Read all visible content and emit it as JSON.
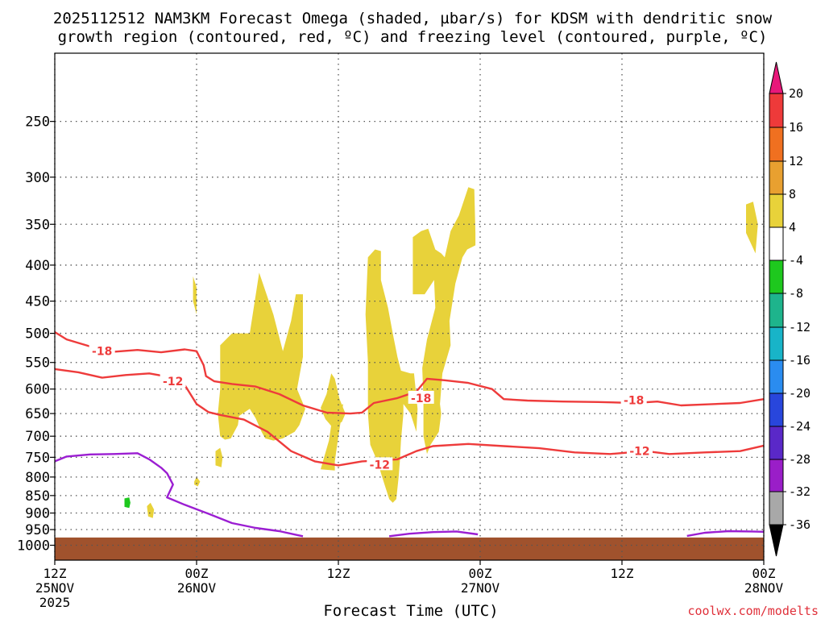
{
  "title": {
    "line1": "2025112512 NAM3KM Forecast Omega (shaded, µbar/s) for KDSM with dendritic snow",
    "line2": "growth region (contoured, red, ºC) and freezing level (contoured, purple, ºC)"
  },
  "credit": "coolwx.com/modelts",
  "chart_data": {
    "type": "time-height cross section (filled contours + line contours)",
    "title": "2025112512 NAM3KM Forecast Omega (shaded, µbar/s) for KDSM with dendritic snow growth region (contoured, red, ºC) and freezing level (contoured, purple, ºC)",
    "xlabel": "Forecast Time (UTC)",
    "ylabel": "",
    "x_unit": "forecast hour from 2025112512",
    "y_unit": "hPa",
    "xlim": [
      0,
      60
    ],
    "ylim": [
      1050,
      200
    ],
    "y_scale": "log",
    "grid": true,
    "x_ticks": [
      {
        "hour": 0,
        "lines": [
          "12Z",
          "25NOV",
          "2025"
        ]
      },
      {
        "hour": 12,
        "lines": [
          "00Z",
          "26NOV"
        ]
      },
      {
        "hour": 24,
        "lines": [
          "12Z"
        ]
      },
      {
        "hour": 36,
        "lines": [
          "00Z",
          "27NOV"
        ]
      },
      {
        "hour": 48,
        "lines": [
          "12Z"
        ]
      },
      {
        "hour": 60,
        "lines": [
          "00Z",
          "28NOV"
        ]
      }
    ],
    "y_ticks": [
      250,
      300,
      350,
      400,
      450,
      500,
      550,
      600,
      650,
      700,
      750,
      800,
      850,
      900,
      950,
      1000
    ],
    "colorbar": {
      "label_unit": "µbar/s",
      "tick_labels": [
        "20",
        "16",
        "12",
        "8",
        "4",
        "-4",
        "-8",
        "-12",
        "-16",
        "-20",
        "-24",
        "-28",
        "-32",
        "-36"
      ],
      "bins": [
        {
          "range": "> 20",
          "color": "#e8187a"
        },
        {
          "range": "16 to 20",
          "color": "#ee3a3a"
        },
        {
          "range": "12 to 16",
          "color": "#f07020"
        },
        {
          "range": "8 to 12",
          "color": "#e8a030"
        },
        {
          "range": "4 to 8",
          "color": "#e8d23a"
        },
        {
          "range": "-4 to 4",
          "color": "#ffffff"
        },
        {
          "range": "-8 to -4",
          "color": "#1ec81e"
        },
        {
          "range": "-12 to -8",
          "color": "#1eb48c"
        },
        {
          "range": "-16 to -12",
          "color": "#18b4c8"
        },
        {
          "range": "-20 to -16",
          "color": "#2a8cf0"
        },
        {
          "range": "-24 to -20",
          "color": "#2846dc"
        },
        {
          "range": "-28 to -24",
          "color": "#5a28c8"
        },
        {
          "range": "-32 to -28",
          "color": "#9a1ec8"
        },
        {
          "range": "-36 to -32",
          "color": "#a8a8a8"
        },
        {
          "range": "< -36",
          "color": "#000000"
        }
      ]
    },
    "terrain": {
      "top_hPa": 975,
      "color": "#a0522d"
    },
    "colors": {
      "dgz": "#ee3b3b",
      "freezing": "#9b1ed2",
      "omega_4_8": "#e8d23a",
      "omega_m8_m4": "#1ec81e"
    },
    "series": [
      {
        "name": "-18",
        "kind": "isotherm",
        "color_key": "dgz",
        "points": [
          [
            0,
            498
          ],
          [
            1,
            510
          ],
          [
            3,
            522
          ],
          [
            5,
            531
          ],
          [
            7,
            528
          ],
          [
            9,
            532
          ],
          [
            11,
            527
          ],
          [
            12,
            530
          ],
          [
            12.6,
            555
          ],
          [
            12.8,
            575
          ],
          [
            13.5,
            585
          ],
          [
            15,
            590
          ],
          [
            17,
            595
          ],
          [
            19,
            610
          ],
          [
            21,
            633
          ],
          [
            23,
            648
          ],
          [
            25,
            650
          ],
          [
            26,
            648
          ],
          [
            27,
            628
          ],
          [
            29,
            618
          ],
          [
            30.6,
            605
          ],
          [
            31.5,
            580
          ],
          [
            33,
            583
          ],
          [
            35,
            588
          ],
          [
            37,
            600
          ],
          [
            38,
            620
          ],
          [
            40,
            623
          ],
          [
            43,
            625
          ],
          [
            46,
            626
          ],
          [
            49,
            628
          ],
          [
            51,
            625
          ],
          [
            53,
            633
          ],
          [
            55,
            631
          ],
          [
            58,
            628
          ],
          [
            60,
            620
          ]
        ],
        "labels": [
          {
            "text": "-18",
            "at": [
              4,
              530
            ]
          },
          {
            "text": "-18",
            "at": [
              31,
              618
            ]
          },
          {
            "text": "-18",
            "at": [
              49,
              622
            ]
          }
        ]
      },
      {
        "name": "-12",
        "kind": "isotherm",
        "color_key": "dgz",
        "points": [
          [
            0,
            562
          ],
          [
            2,
            568
          ],
          [
            4,
            578
          ],
          [
            6,
            573
          ],
          [
            8,
            570
          ],
          [
            10,
            578
          ],
          [
            11,
            592
          ],
          [
            12,
            630
          ],
          [
            13,
            647
          ],
          [
            14,
            653
          ],
          [
            16,
            663
          ],
          [
            18,
            690
          ],
          [
            20,
            735
          ],
          [
            22,
            760
          ],
          [
            24,
            770
          ],
          [
            26,
            760
          ],
          [
            29,
            755
          ],
          [
            30.6,
            735
          ],
          [
            32,
            723
          ],
          [
            35,
            718
          ],
          [
            38,
            723
          ],
          [
            41,
            728
          ],
          [
            44,
            738
          ],
          [
            47,
            742
          ],
          [
            50,
            735
          ],
          [
            52,
            742
          ],
          [
            55,
            738
          ],
          [
            58,
            735
          ],
          [
            60,
            722
          ]
        ],
        "labels": [
          {
            "text": "-12",
            "at": [
              10,
              585
            ]
          },
          {
            "text": "-12",
            "at": [
              27.5,
              768
            ]
          },
          {
            "text": "-12",
            "at": [
              49.5,
              735
            ]
          }
        ]
      },
      {
        "name": "0",
        "kind": "freezing level",
        "color_key": "freezing",
        "points": [
          [
            0,
            760
          ],
          [
            1,
            748
          ],
          [
            3,
            743
          ],
          [
            5,
            742
          ],
          [
            7,
            740
          ],
          [
            8,
            755
          ],
          [
            9,
            776
          ],
          [
            9.5,
            790
          ],
          [
            10,
            820
          ],
          [
            9.5,
            855
          ],
          [
            11,
            876
          ],
          [
            13,
            902
          ],
          [
            15,
            930
          ],
          [
            17,
            945
          ],
          [
            19,
            955
          ],
          [
            20.5,
            967
          ],
          [
            21,
            971
          ]
        ],
        "labels": []
      },
      {
        "name": "0",
        "kind": "freezing level",
        "color_key": "freezing",
        "points": [
          [
            28.3,
            971
          ],
          [
            30,
            963
          ],
          [
            32,
            958
          ],
          [
            34,
            956
          ],
          [
            35.8,
            965
          ]
        ],
        "labels": []
      },
      {
        "name": "0",
        "kind": "freezing level",
        "color_key": "freezing",
        "points": [
          [
            53.5,
            970
          ],
          [
            55,
            960
          ],
          [
            57,
            955
          ],
          [
            59,
            956
          ],
          [
            60,
            957
          ]
        ],
        "labels": []
      }
    ],
    "omega_regions": [
      {
        "category": "4 to 8",
        "color_key": "omega_4_8",
        "points": [
          [
            11.7,
            415
          ],
          [
            12,
            430
          ],
          [
            12,
            470
          ],
          [
            11.7,
            450
          ]
        ]
      },
      {
        "category": "4 to 8",
        "color_key": "omega_4_8",
        "points": [
          [
            14,
            520
          ],
          [
            15,
            500
          ],
          [
            16.5,
            500
          ],
          [
            17.3,
            410
          ],
          [
            18.5,
            470
          ],
          [
            19.3,
            530
          ],
          [
            20,
            480
          ],
          [
            20.4,
            440
          ],
          [
            21,
            440
          ],
          [
            21,
            500
          ],
          [
            21,
            540
          ],
          [
            20.5,
            600
          ],
          [
            21.2,
            640
          ],
          [
            20.7,
            675
          ],
          [
            20.3,
            690
          ],
          [
            19.3,
            705
          ],
          [
            18.5,
            710
          ],
          [
            17.8,
            705
          ],
          [
            17.5,
            690
          ],
          [
            17,
            660
          ],
          [
            16.5,
            640
          ],
          [
            15.6,
            655
          ],
          [
            15.5,
            675
          ],
          [
            14.9,
            705
          ],
          [
            14.4,
            708
          ],
          [
            14,
            700
          ],
          [
            13.8,
            650
          ],
          [
            14,
            600
          ]
        ]
      },
      {
        "category": "4 to 8",
        "color_key": "omega_4_8",
        "points": [
          [
            22.5,
            780
          ],
          [
            23.2,
            710
          ],
          [
            23.6,
            640
          ],
          [
            24.4,
            630
          ],
          [
            24.3,
            650
          ],
          [
            24,
            700
          ],
          [
            23.7,
            760
          ],
          [
            23.7,
            783
          ]
        ]
      },
      {
        "category": "4 to 8",
        "color_key": "omega_4_8",
        "points": [
          [
            22.5,
            638
          ],
          [
            23,
            610
          ],
          [
            23.4,
            570
          ],
          [
            23.7,
            580
          ],
          [
            24.1,
            620
          ],
          [
            24.6,
            650
          ],
          [
            24.3,
            668
          ],
          [
            23.5,
            680
          ],
          [
            22.9,
            662
          ]
        ]
      },
      {
        "category": "4 to 8",
        "color_key": "omega_4_8",
        "points": [
          [
            26.5,
            390
          ],
          [
            27.1,
            380
          ],
          [
            27.6,
            382
          ],
          [
            27.6,
            420
          ],
          [
            28.2,
            460
          ],
          [
            28.6,
            500
          ],
          [
            29,
            540
          ],
          [
            29.3,
            565
          ],
          [
            30.1,
            570
          ],
          [
            30.4,
            570
          ],
          [
            30.7,
            640
          ],
          [
            30.6,
            690
          ],
          [
            30.1,
            650
          ],
          [
            29.5,
            630
          ],
          [
            29.5,
            650
          ],
          [
            29.3,
            710
          ],
          [
            29.2,
            760
          ],
          [
            29.1,
            800
          ],
          [
            28.9,
            860
          ],
          [
            28.6,
            870
          ],
          [
            28.3,
            860
          ],
          [
            27.7,
            800
          ],
          [
            27.3,
            760
          ],
          [
            26.7,
            720
          ],
          [
            26.5,
            650
          ],
          [
            26.5,
            550
          ],
          [
            26.3,
            470
          ]
        ]
      },
      {
        "category": "4 to 8",
        "color_key": "omega_4_8",
        "points": [
          [
            30.3,
            365
          ],
          [
            31,
            358
          ],
          [
            31.6,
            355
          ],
          [
            32.2,
            380
          ],
          [
            32.7,
            385
          ],
          [
            33,
            390
          ],
          [
            33.5,
            358
          ],
          [
            34.2,
            340
          ],
          [
            35,
            310
          ],
          [
            35.5,
            312
          ],
          [
            35.6,
            360
          ],
          [
            35.6,
            375
          ],
          [
            34.9,
            380
          ],
          [
            34.5,
            390
          ],
          [
            33.9,
            425
          ],
          [
            33.4,
            480
          ],
          [
            33.5,
            520
          ],
          [
            32.8,
            570
          ],
          [
            32.6,
            630
          ],
          [
            32.7,
            650
          ],
          [
            32.5,
            690
          ],
          [
            31.8,
            720
          ],
          [
            31.5,
            742
          ],
          [
            31.2,
            700
          ],
          [
            31.2,
            620
          ],
          [
            31.1,
            560
          ],
          [
            31.5,
            510
          ],
          [
            32.2,
            460
          ],
          [
            32.1,
            420
          ],
          [
            31.3,
            440
          ],
          [
            30.3,
            440
          ]
        ]
      },
      {
        "category": "4 to 8",
        "color_key": "omega_4_8",
        "points": [
          [
            58.5,
            328
          ],
          [
            59.1,
            325
          ],
          [
            59.5,
            350
          ],
          [
            59.3,
            385
          ],
          [
            58.5,
            360
          ]
        ]
      },
      {
        "category": "4 to 8",
        "color_key": "omega_4_8",
        "points": [
          [
            13.6,
            735
          ],
          [
            14,
            727
          ],
          [
            14.2,
            750
          ],
          [
            14.1,
            775
          ],
          [
            13.6,
            770
          ]
        ]
      },
      {
        "category": "4 to 8",
        "color_key": "omega_4_8",
        "points": [
          [
            11.8,
            812
          ],
          [
            12,
            800
          ],
          [
            12.3,
            812
          ],
          [
            12.1,
            825
          ],
          [
            11.8,
            820
          ]
        ]
      },
      {
        "category": "4 to 8",
        "color_key": "omega_4_8",
        "points": [
          [
            7.8,
            880
          ],
          [
            8.1,
            870
          ],
          [
            8.4,
            890
          ],
          [
            8.3,
            915
          ],
          [
            7.9,
            910
          ]
        ]
      },
      {
        "category": "-8 to -4",
        "color_key": "omega_m8_m4",
        "points": [
          [
            5.9,
            858
          ],
          [
            6.3,
            855
          ],
          [
            6.4,
            870
          ],
          [
            6.3,
            885
          ],
          [
            5.9,
            882
          ]
        ]
      }
    ],
    "axis_label": "Forecast Time (UTC)"
  }
}
